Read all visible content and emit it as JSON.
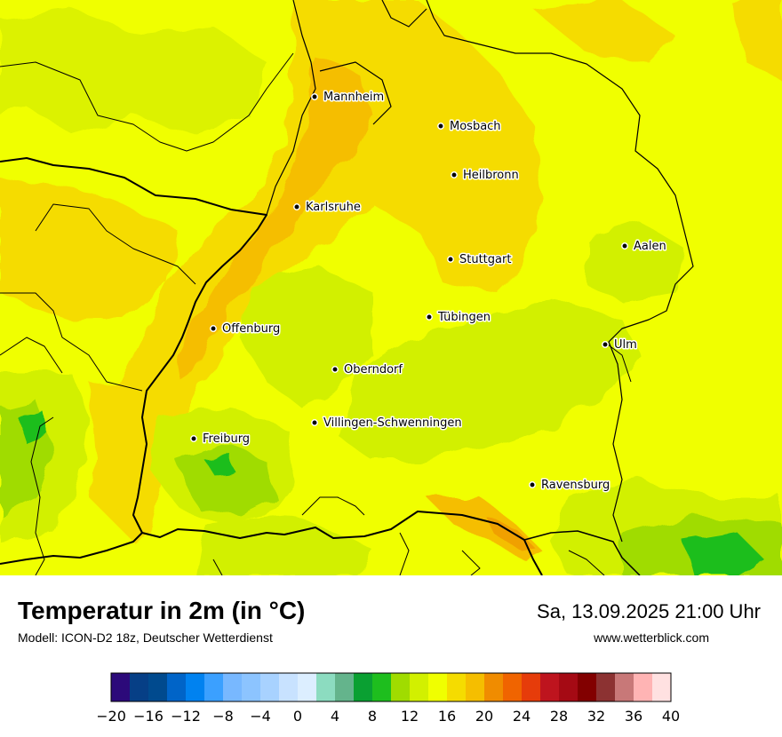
{
  "map": {
    "cities": [
      {
        "name": "Mannheim"
      },
      {
        "name": "Mosbach"
      },
      {
        "name": "Heilbronn"
      },
      {
        "name": "Karlsruhe"
      },
      {
        "name": "Aalen"
      },
      {
        "name": "Stuttgart"
      },
      {
        "name": "Tübingen"
      },
      {
        "name": "Offenburg"
      },
      {
        "name": "Ulm"
      },
      {
        "name": "Oberndorf"
      },
      {
        "name": "Villingen-Schwenningen"
      },
      {
        "name": "Freiburg"
      },
      {
        "name": "Ravensburg"
      }
    ]
  },
  "footer": {
    "title": "Temperatur in 2m (in °C)",
    "subtitle": "Modell: ICON-D2 18z, Deutscher Wetterdienst",
    "datetime": "Sa, 13.09.2025 21:00 Uhr",
    "website": "www.wetterblick.com"
  },
  "legend": {
    "min": -20,
    "max": 40,
    "tick_labels": [
      "−20",
      "−16",
      "−12",
      "−8",
      "−4",
      "0",
      "4",
      "8",
      "12",
      "16",
      "20",
      "24",
      "28",
      "32",
      "36",
      "40"
    ],
    "colors": [
      "#2c0a7a",
      "#063f86",
      "#004a8e",
      "#0064c8",
      "#0082f0",
      "#3ba0ff",
      "#78b8ff",
      "#8cc4ff",
      "#a8d2ff",
      "#c8e2ff",
      "#dceeff",
      "#8cdcc0",
      "#64b48c",
      "#0aa032",
      "#1ebe1e",
      "#a0dc00",
      "#d2f000",
      "#f0ff00",
      "#f5dc00",
      "#f5be00",
      "#f08c00",
      "#f06400",
      "#e63c0a",
      "#be141e",
      "#a50a14",
      "#820000",
      "#8c3232",
      "#c87878",
      "#ffb4b4",
      "#ffe1e1"
    ]
  }
}
